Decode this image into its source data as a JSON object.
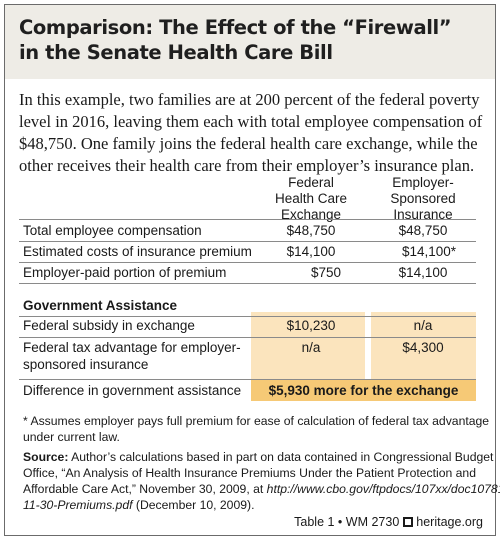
{
  "title": {
    "line1": "Comparison: The Effect of the “Firewall”",
    "line2": "in the Senate Health Care Bill"
  },
  "intro": {
    "line1": "In this example, two families are at 200 percent of the federal poverty",
    "line2": "level in 2016, leaving them each with total employee compensation of",
    "line3": "$48,750. One family joins the federal health care exchange, while the",
    "line4": "other receives their health care from their employer’s insurance plan."
  },
  "columns": {
    "col1": [
      "Federal",
      "Health Care",
      "Exchange"
    ],
    "col2": [
      "Employer-",
      "Sponsored",
      "Insurance"
    ]
  },
  "rows": [
    {
      "label": "Total employee compensation",
      "exchange": "$48,750",
      "employer": "$48,750"
    },
    {
      "label": "Estimated costs of insurance premium",
      "exchange": "$14,100",
      "employer": "$14,100*"
    },
    {
      "label": "Employer-paid portion of premium",
      "exchange": "$750",
      "employer": "$14,100"
    }
  ],
  "assistance": {
    "heading": "Government Assistance",
    "subsidy": {
      "label": "Federal subsidy in exchange",
      "exchange": "$10,230",
      "employer": "n/a"
    },
    "tax": {
      "label_line1": "Federal tax advantage for employer-",
      "label_line2": "sponsored insurance",
      "exchange": "n/a",
      "employer": "$4,300"
    },
    "difference": {
      "label": "Difference in government assistance",
      "value": "$5,930 more for the exchange"
    }
  },
  "footnote": {
    "line1": "* Assumes employer pays full premium for ease of calculation of federal tax advantage",
    "line2": "under current law."
  },
  "source": {
    "label": "Source:",
    "line1": " Author’s calculations based in part on data contained in Congressional Budget",
    "line2": "Office, “An Analysis of Health Insurance Premiums Under the Patient Protection and",
    "line3": "Affordable Care Act,” November 30, 2009, at ",
    "url1": "http://www.cbo.gov/ftpdocs/107xx/doc10781/",
    "url2": "11-30-Premiums.pdf",
    "line4": " (December 10, 2009)."
  },
  "footer": {
    "table_ref": "Table 1 • WM 2730",
    "site": "heritage.org"
  },
  "colors": {
    "header_bg": "#eeece6",
    "shade_light": "#fbe4bd",
    "shade_strong": "#f6c976"
  }
}
